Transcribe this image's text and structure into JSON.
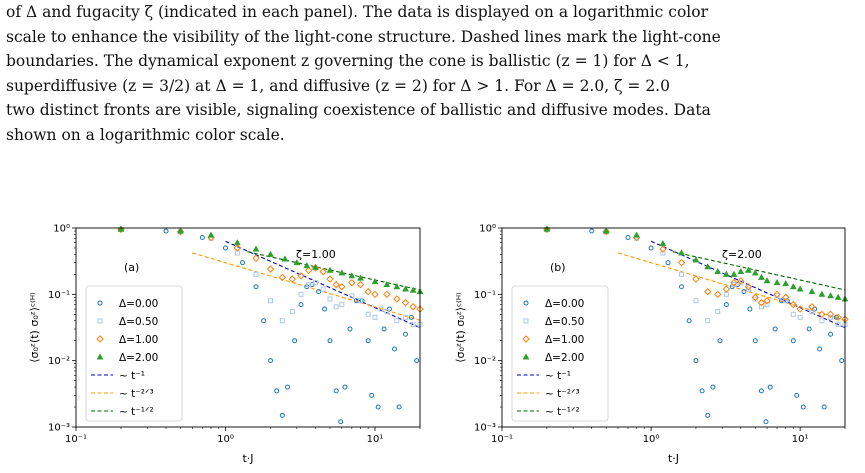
{
  "caption": {
    "line0": "of Δ and fugacity ζ (indicated in each panel). The data is displayed on a logarithmic color",
    "line1": "scale to enhance the visibility of the light-cone structure. Dashed lines mark the light-cone",
    "line2": "boundaries. The dynamical exponent z governing the cone is ballistic (z = 1) for Δ < 1,",
    "line3": "superdiffusive (z = 3/2) at Δ = 1, and diffusive (z = 2) for Δ > 1. For Δ = 2.0, ζ = 2.0",
    "line4": "two distinct fronts are visible, signaling coexistence of ballistic and diffusive modes. Data",
    "line5": "shown on a logarithmic color scale."
  },
  "colors": {
    "d000": "#1f77b4",
    "d050": "#aec7e8",
    "d100": "#ff7f0e",
    "d200": "#2ca02c",
    "fit1": "#0000bb",
    "fit23": "#ff9900",
    "fit12": "#006400"
  },
  "chart_data": [
    {
      "type": "scatter",
      "panel_label": "(a)",
      "annotation": "ζ=1.00",
      "zeta": 1.0,
      "xlabel": "t·J",
      "ylabel": "⟨σ₀ᶻ(t) σ₀ᶻ⟩ᶜ⁽ᴴ⁾",
      "xscale": "log",
      "yscale": "log",
      "xlim": [
        0.1,
        20
      ],
      "ylim": [
        0.001,
        1
      ],
      "x_ticks": [
        "10⁻¹",
        "10⁰",
        "10¹"
      ],
      "y_ticks": [
        "10⁻³",
        "10⁻²",
        "10⁻¹",
        "10⁰"
      ],
      "legend_position": "lower-left",
      "series": [
        {
          "name": "Δ=0.00",
          "marker": "hollow-circle",
          "points": [
            [
              0.2,
              0.95
            ],
            [
              0.4,
              0.9
            ],
            [
              0.7,
              0.72
            ],
            [
              1.0,
              0.5
            ],
            [
              1.3,
              0.3
            ],
            [
              1.6,
              0.13
            ],
            [
              1.8,
              0.04
            ],
            [
              2.0,
              0.01
            ],
            [
              2.2,
              0.0035
            ],
            [
              2.4,
              0.0015
            ],
            [
              2.6,
              0.004
            ],
            [
              2.9,
              0.02
            ],
            [
              3.2,
              0.07
            ],
            [
              3.5,
              0.13
            ],
            [
              3.8,
              0.14
            ],
            [
              4.2,
              0.11
            ],
            [
              4.6,
              0.06
            ],
            [
              5.0,
              0.02
            ],
            [
              5.5,
              0.0035
            ],
            [
              5.9,
              0.0012
            ],
            [
              6.3,
              0.004
            ],
            [
              6.8,
              0.03
            ],
            [
              7.5,
              0.08
            ],
            [
              8.2,
              0.08
            ],
            [
              9.0,
              0.02
            ],
            [
              9.5,
              0.003
            ],
            [
              10.5,
              0.002
            ],
            [
              11.5,
              0.03
            ],
            [
              12.5,
              0.06
            ],
            [
              13.5,
              0.015
            ],
            [
              14.5,
              0.002
            ],
            [
              16,
              0.025
            ],
            [
              17.5,
              0.045
            ],
            [
              19,
              0.01
            ]
          ]
        },
        {
          "name": "Δ=0.50",
          "marker": "hollow-square",
          "points": [
            [
              0.2,
              0.95
            ],
            [
              0.5,
              0.88
            ],
            [
              0.8,
              0.7
            ],
            [
              1.2,
              0.42
            ],
            [
              1.6,
              0.2
            ],
            [
              2.0,
              0.08
            ],
            [
              2.4,
              0.04
            ],
            [
              2.8,
              0.055
            ],
            [
              3.2,
              0.1
            ],
            [
              3.6,
              0.14
            ],
            [
              4.0,
              0.15
            ],
            [
              4.5,
              0.12
            ],
            [
              5.0,
              0.085
            ],
            [
              5.5,
              0.065
            ],
            [
              6.0,
              0.07
            ],
            [
              7.0,
              0.095
            ],
            [
              8.0,
              0.08
            ],
            [
              9.0,
              0.05
            ],
            [
              10.0,
              0.045
            ],
            [
              11,
              0.06
            ],
            [
              12,
              0.055
            ],
            [
              14,
              0.04
            ],
            [
              16,
              0.045
            ],
            [
              18,
              0.035
            ],
            [
              20,
              0.035
            ]
          ]
        },
        {
          "name": "Δ=1.00",
          "marker": "diamond",
          "points": [
            [
              0.2,
              0.95
            ],
            [
              0.5,
              0.88
            ],
            [
              0.8,
              0.72
            ],
            [
              1.2,
              0.5
            ],
            [
              1.6,
              0.35
            ],
            [
              2.0,
              0.24
            ],
            [
              2.4,
              0.18
            ],
            [
              2.8,
              0.17
            ],
            [
              3.2,
              0.19
            ],
            [
              3.6,
              0.23
            ],
            [
              4.0,
              0.25
            ],
            [
              4.5,
              0.22
            ],
            [
              5.0,
              0.17
            ],
            [
              5.5,
              0.14
            ],
            [
              6.0,
              0.13
            ],
            [
              7.0,
              0.15
            ],
            [
              8.0,
              0.14
            ],
            [
              9.0,
              0.11
            ],
            [
              10,
              0.1
            ],
            [
              12,
              0.1
            ],
            [
              14,
              0.085
            ],
            [
              16,
              0.075
            ],
            [
              18,
              0.065
            ],
            [
              20,
              0.06
            ]
          ]
        },
        {
          "name": "Δ=2.00",
          "marker": "triangle",
          "points": [
            [
              0.2,
              0.96
            ],
            [
              0.5,
              0.9
            ],
            [
              0.8,
              0.78
            ],
            [
              1.2,
              0.6
            ],
            [
              1.6,
              0.48
            ],
            [
              2.0,
              0.4
            ],
            [
              2.5,
              0.34
            ],
            [
              3.0,
              0.3
            ],
            [
              3.5,
              0.27
            ],
            [
              4.0,
              0.255
            ],
            [
              5.0,
              0.23
            ],
            [
              6.0,
              0.21
            ],
            [
              7.0,
              0.19
            ],
            [
              8.0,
              0.175
            ],
            [
              10,
              0.155
            ],
            [
              12,
              0.14
            ],
            [
              14,
              0.13
            ],
            [
              16,
              0.12
            ],
            [
              18,
              0.115
            ],
            [
              20,
              0.11
            ]
          ]
        }
      ],
      "fits": [
        {
          "name": "~ t⁻¹",
          "exponent": -1,
          "amp": 0.63,
          "x_range": [
            1.0,
            20
          ]
        },
        {
          "name": "~ t⁻²ᐟ³",
          "exponent": -0.6667,
          "amp": 0.3,
          "x_range": [
            0.6,
            20
          ]
        },
        {
          "name": "~ t⁻¹ᐟ²",
          "exponent": -0.5,
          "amp": 0.52,
          "x_range": [
            1.4,
            20
          ]
        }
      ]
    },
    {
      "type": "scatter",
      "panel_label": "(b)",
      "annotation": "ζ=2.00",
      "zeta": 2.0,
      "xlabel": "t·J",
      "ylabel": "⟨σ₀ᶻ(t) σ₀ᶻ⟩ᶜ⁽ᴴ⁾",
      "xscale": "log",
      "yscale": "log",
      "xlim": [
        0.1,
        20
      ],
      "ylim": [
        0.001,
        1
      ],
      "x_ticks": [
        "10⁻¹",
        "10⁰",
        "10¹"
      ],
      "y_ticks": [
        "10⁻³",
        "10⁻²",
        "10⁻¹",
        "10⁰"
      ],
      "legend_position": "lower-left",
      "series": [
        {
          "name": "Δ=0.00",
          "marker": "hollow-circle",
          "points": [
            [
              0.2,
              0.95
            ],
            [
              0.4,
              0.9
            ],
            [
              0.7,
              0.72
            ],
            [
              1.0,
              0.5
            ],
            [
              1.3,
              0.3
            ],
            [
              1.6,
              0.13
            ],
            [
              1.8,
              0.04
            ],
            [
              2.0,
              0.01
            ],
            [
              2.2,
              0.0035
            ],
            [
              2.4,
              0.0015
            ],
            [
              2.6,
              0.004
            ],
            [
              2.9,
              0.02
            ],
            [
              3.2,
              0.07
            ],
            [
              3.5,
              0.13
            ],
            [
              3.8,
              0.14
            ],
            [
              4.2,
              0.11
            ],
            [
              4.6,
              0.06
            ],
            [
              5.0,
              0.02
            ],
            [
              5.5,
              0.0035
            ],
            [
              5.9,
              0.0012
            ],
            [
              6.3,
              0.004
            ],
            [
              6.8,
              0.03
            ],
            [
              7.5,
              0.08
            ],
            [
              8.2,
              0.08
            ],
            [
              9.0,
              0.02
            ],
            [
              9.5,
              0.003
            ],
            [
              10.5,
              0.002
            ],
            [
              11.5,
              0.03
            ],
            [
              12.5,
              0.06
            ],
            [
              13.5,
              0.015
            ],
            [
              14.5,
              0.002
            ],
            [
              16,
              0.025
            ],
            [
              17.5,
              0.045
            ],
            [
              19,
              0.01
            ]
          ]
        },
        {
          "name": "Δ=0.50",
          "marker": "hollow-square",
          "points": [
            [
              0.2,
              0.95
            ],
            [
              0.5,
              0.88
            ],
            [
              0.8,
              0.7
            ],
            [
              1.2,
              0.42
            ],
            [
              1.6,
              0.2
            ],
            [
              2.0,
              0.08
            ],
            [
              2.4,
              0.04
            ],
            [
              2.8,
              0.055
            ],
            [
              3.2,
              0.1
            ],
            [
              3.6,
              0.14
            ],
            [
              4.0,
              0.15
            ],
            [
              4.5,
              0.12
            ],
            [
              5.0,
              0.085
            ],
            [
              5.5,
              0.065
            ],
            [
              6.0,
              0.07
            ],
            [
              7.0,
              0.095
            ],
            [
              8.0,
              0.08
            ],
            [
              9.0,
              0.05
            ],
            [
              10,
              0.045
            ],
            [
              12,
              0.055
            ],
            [
              14,
              0.04
            ],
            [
              16,
              0.045
            ],
            [
              18,
              0.035
            ],
            [
              20,
              0.035
            ]
          ]
        },
        {
          "name": "Δ=1.00",
          "marker": "diamond",
          "points": [
            [
              0.2,
              0.95
            ],
            [
              0.5,
              0.88
            ],
            [
              0.8,
              0.72
            ],
            [
              1.2,
              0.48
            ],
            [
              1.6,
              0.3
            ],
            [
              2.0,
              0.17
            ],
            [
              2.4,
              0.11
            ],
            [
              2.8,
              0.1
            ],
            [
              3.2,
              0.12
            ],
            [
              3.6,
              0.15
            ],
            [
              4.0,
              0.16
            ],
            [
              4.5,
              0.13
            ],
            [
              5.0,
              0.09
            ],
            [
              5.5,
              0.075
            ],
            [
              6.0,
              0.08
            ],
            [
              7.0,
              0.1
            ],
            [
              8.0,
              0.09
            ],
            [
              9.0,
              0.07
            ],
            [
              10,
              0.06
            ],
            [
              12,
              0.065
            ],
            [
              14,
              0.05
            ],
            [
              16,
              0.05
            ],
            [
              18,
              0.045
            ],
            [
              20,
              0.042
            ]
          ]
        },
        {
          "name": "Δ=2.00",
          "marker": "triangle",
          "points": [
            [
              0.2,
              0.96
            ],
            [
              0.5,
              0.9
            ],
            [
              0.8,
              0.78
            ],
            [
              1.2,
              0.58
            ],
            [
              1.6,
              0.42
            ],
            [
              2.0,
              0.33
            ],
            [
              2.4,
              0.26
            ],
            [
              2.8,
              0.22
            ],
            [
              3.2,
              0.2
            ],
            [
              3.6,
              0.2
            ],
            [
              4.0,
              0.22
            ],
            [
              4.5,
              0.23
            ],
            [
              5.0,
              0.21
            ],
            [
              5.5,
              0.18
            ],
            [
              6.0,
              0.16
            ],
            [
              7.0,
              0.15
            ],
            [
              8.0,
              0.145
            ],
            [
              9.0,
              0.13
            ],
            [
              10,
              0.12
            ],
            [
              12,
              0.11
            ],
            [
              14,
              0.1
            ],
            [
              16,
              0.095
            ],
            [
              18,
              0.09
            ],
            [
              20,
              0.085
            ]
          ]
        }
      ],
      "fits": [
        {
          "name": "~ t⁻¹",
          "exponent": -1,
          "amp": 0.63,
          "x_range": [
            1.0,
            20
          ]
        },
        {
          "name": "~ t⁻²ᐟ³",
          "exponent": -0.6667,
          "amp": 0.3,
          "x_range": [
            0.6,
            20
          ]
        },
        {
          "name": "~ t⁻¹ᐟ²",
          "exponent": -0.5,
          "amp": 0.52,
          "x_range": [
            1.4,
            20
          ]
        }
      ]
    }
  ]
}
